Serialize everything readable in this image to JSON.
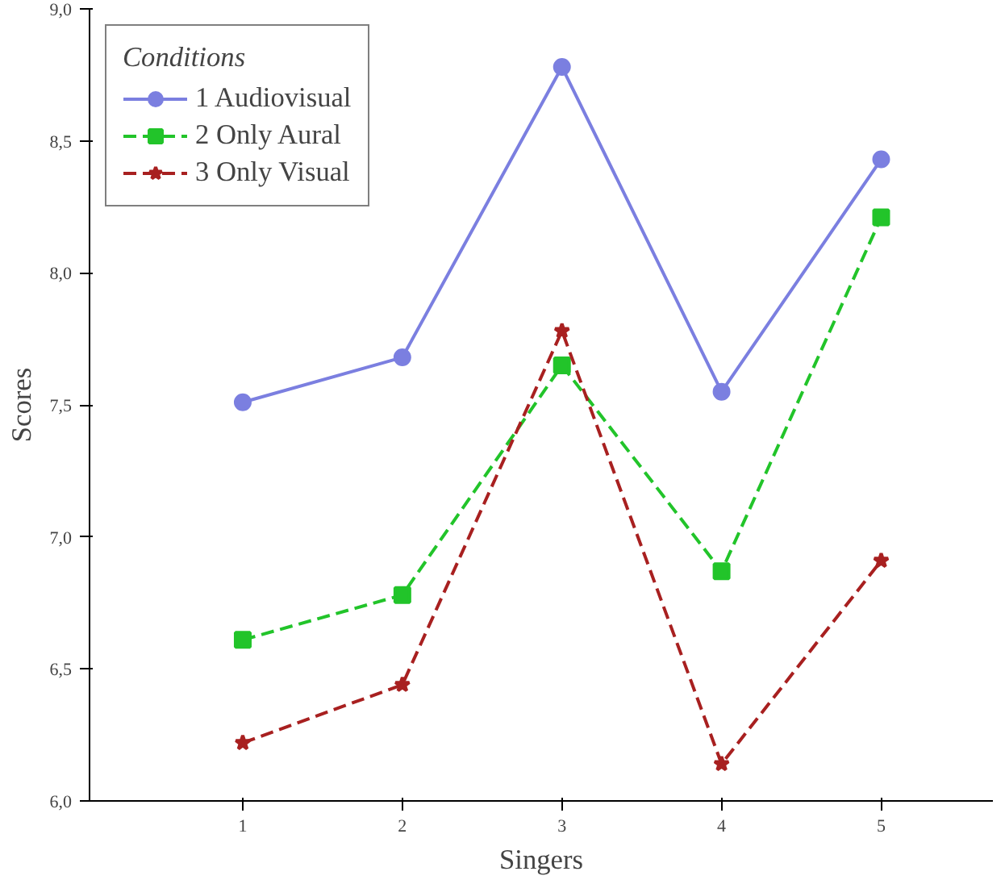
{
  "chart_data": {
    "type": "line",
    "xlabel": "Singers",
    "ylabel": "Scores",
    "legend_title": "Conditions",
    "legend": "top left",
    "grid": false,
    "x": [
      1,
      2,
      3,
      4,
      5
    ],
    "xlim": [
      0.04,
      5.7
    ],
    "xticks": [
      1,
      2,
      3,
      4,
      5
    ],
    "ylim": [
      6.0,
      9.0
    ],
    "yticks": [
      {
        "value": 6.0,
        "label": "6,0"
      },
      {
        "value": 6.5,
        "label": "6,5"
      },
      {
        "value": 7.0,
        "label": "7,0"
      },
      {
        "value": 7.5,
        "label": "7,5"
      },
      {
        "value": 8.0,
        "label": "8,0"
      },
      {
        "value": 8.5,
        "label": "8,5"
      },
      {
        "value": 9.0,
        "label": "9,0"
      }
    ],
    "series": [
      {
        "name": "1 Audiovisual",
        "color": "#7b7fe0",
        "marker": "circle",
        "line_style": "solid",
        "values": [
          7.51,
          7.68,
          8.78,
          7.55,
          8.43
        ]
      },
      {
        "name": "2 Only Aural",
        "color": "#22c42a",
        "marker": "square",
        "line_style": "dashed",
        "values": [
          6.61,
          6.78,
          7.65,
          6.87,
          8.21
        ]
      },
      {
        "name": "3 Only Visual",
        "color": "#a82020",
        "marker": "star",
        "line_style": "dashed",
        "values": [
          6.22,
          6.44,
          7.78,
          6.14,
          6.91
        ]
      }
    ]
  }
}
